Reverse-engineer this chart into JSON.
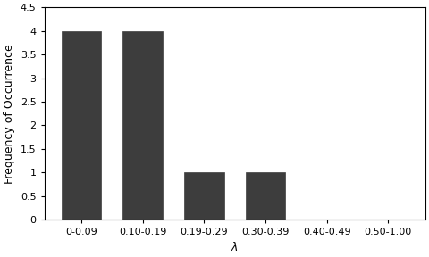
{
  "categories": [
    "0-0.09",
    "0.10-0.19",
    "0.19-0.29",
    "0.30-0.39",
    "0.40-0.49",
    "0.50-1.00"
  ],
  "values": [
    4,
    4,
    1,
    1,
    0,
    0
  ],
  "bar_color": "#3d3d3d",
  "bar_edge_color": "#3d3d3d",
  "xlabel": "λ",
  "ylabel": "Frequency of Occurrence",
  "ylim": [
    0,
    4.5
  ],
  "yticks": [
    0,
    0.5,
    1,
    1.5,
    2,
    2.5,
    3,
    3.5,
    4,
    4.5
  ],
  "xlabel_fontsize": 9,
  "ylabel_fontsize": 9,
  "tick_fontsize": 8,
  "background_color": "#ffffff",
  "bar_width": 0.65
}
